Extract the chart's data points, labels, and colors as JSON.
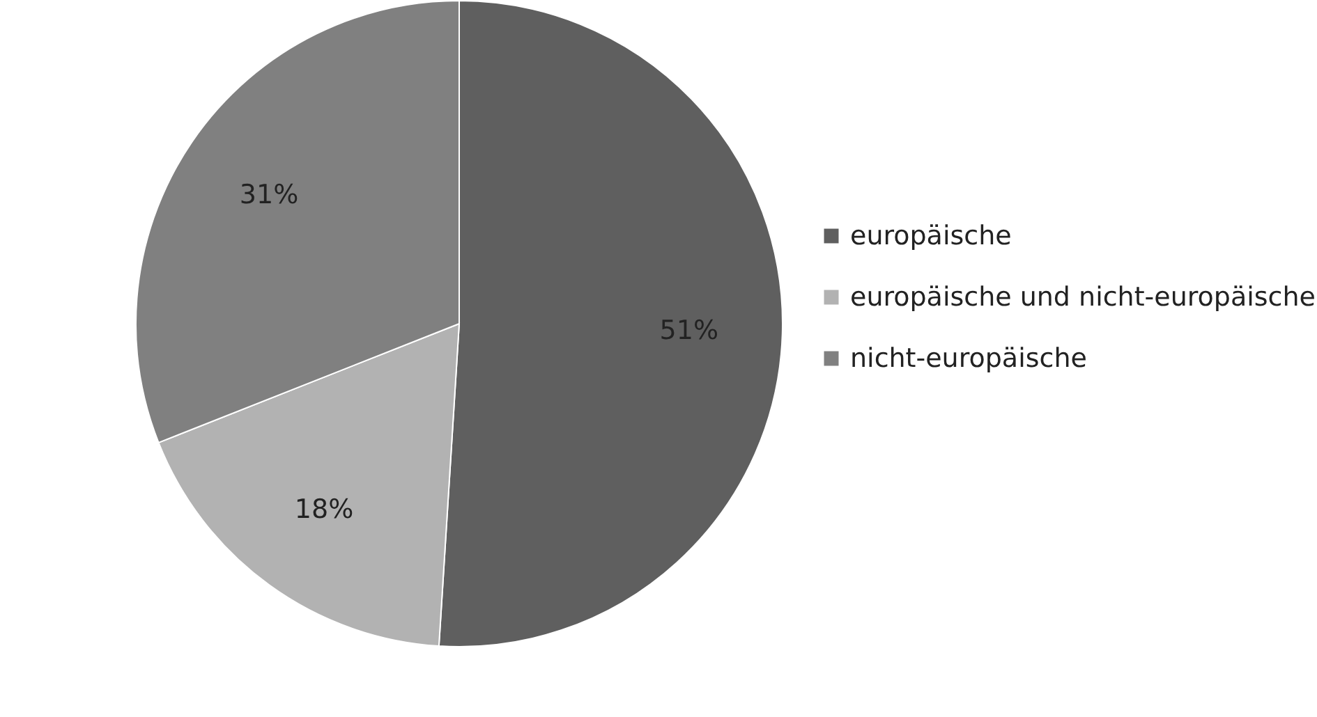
{
  "chart_data": {
    "type": "pie",
    "categories": [
      "europäische",
      "europäische und nicht-europäische",
      "nicht-europäische"
    ],
    "values": [
      51,
      18,
      31
    ],
    "colors": [
      "#5f5f5f",
      "#b2b2b2",
      "#808080"
    ],
    "value_labels": [
      "51%",
      "18%",
      "31%"
    ],
    "legend": "right"
  }
}
